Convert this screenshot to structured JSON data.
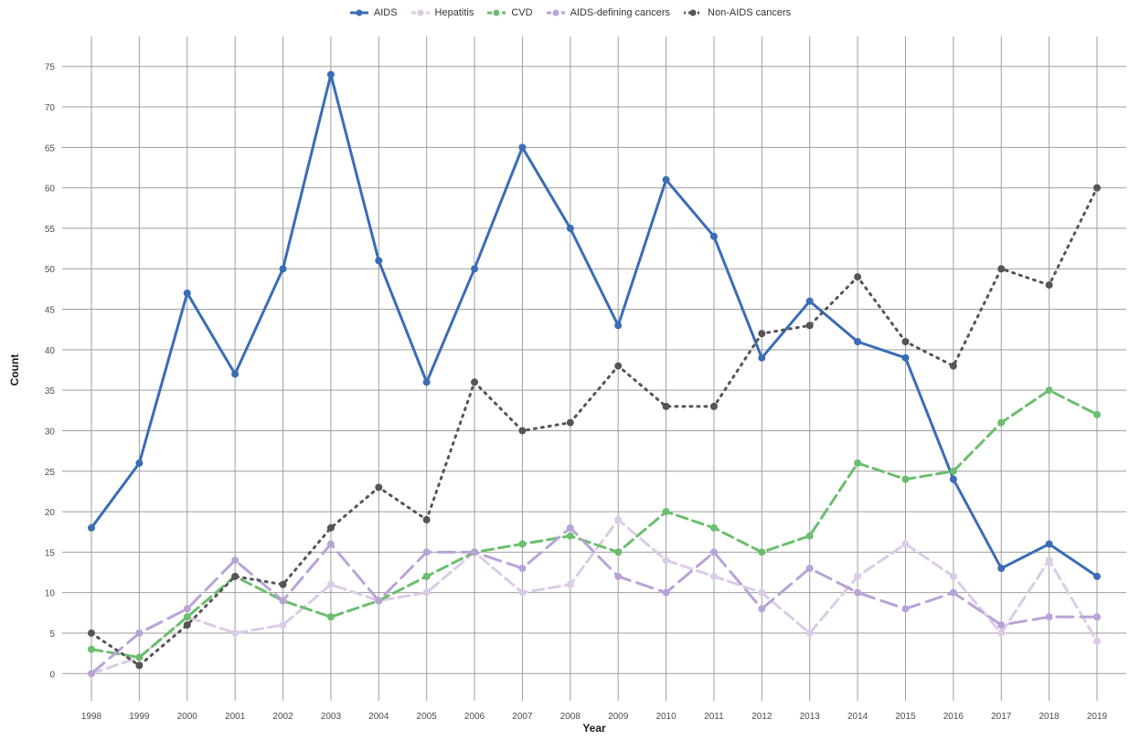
{
  "chart_data": {
    "type": "line",
    "title": "",
    "xlabel": "Year",
    "ylabel": "Count",
    "x": [
      1998,
      1999,
      2000,
      2001,
      2002,
      2003,
      2004,
      2005,
      2006,
      2007,
      2008,
      2009,
      2010,
      2011,
      2012,
      2013,
      2014,
      2015,
      2016,
      2017,
      2018,
      2019
    ],
    "x_tick_labels": [
      "1998",
      "1999",
      "2000",
      "2001",
      "2002",
      "2003",
      "2004",
      "2005",
      "2006",
      "2007",
      "2008",
      "2009",
      "2010",
      "2011",
      "2012",
      "2013",
      "2014",
      "2015",
      "2016",
      "2017",
      "2018",
      "2019"
    ],
    "ylim": [
      -2,
      77
    ],
    "y_ticks": [
      0,
      5,
      10,
      15,
      20,
      25,
      30,
      35,
      40,
      45,
      50,
      55,
      60,
      65,
      70,
      75
    ],
    "y_tick_labels": [
      "0",
      "5",
      "10",
      "15",
      "20",
      "25",
      "30",
      "35",
      "40",
      "45",
      "50",
      "55",
      "60",
      "65",
      "70",
      "75"
    ],
    "grid": true,
    "legend_position": "top",
    "series": [
      {
        "name": "AIDS",
        "color": "#3a6db5",
        "dash": "solid",
        "values": [
          18,
          26,
          47,
          37,
          50,
          74,
          51,
          36,
          50,
          65,
          55,
          43,
          61,
          54,
          39,
          46,
          41,
          39,
          24,
          13,
          16,
          12
        ]
      },
      {
        "name": "Hepatitis",
        "color": "#dccbe6",
        "dash": "dashed",
        "values": [
          0,
          2,
          7,
          5,
          6,
          11,
          9,
          10,
          15,
          10,
          11,
          19,
          14,
          12,
          10,
          5,
          12,
          16,
          12,
          5,
          14,
          4
        ]
      },
      {
        "name": "CVD",
        "color": "#6bbe6e",
        "dash": "dashed",
        "values": [
          3,
          2,
          7,
          12,
          9,
          7,
          9,
          12,
          15,
          16,
          17,
          15,
          20,
          18,
          15,
          17,
          26,
          24,
          25,
          31,
          35,
          32
        ]
      },
      {
        "name": "AIDS-defining cancers",
        "color": "#b9a3d6",
        "dash": "longdash",
        "values": [
          0,
          5,
          8,
          14,
          9,
          16,
          9,
          15,
          15,
          13,
          18,
          12,
          10,
          15,
          8,
          13,
          10,
          8,
          10,
          6,
          7,
          7
        ]
      },
      {
        "name": "Non-AIDS cancers",
        "color": "#555555",
        "dash": "dotted",
        "values": [
          5,
          1,
          6,
          12,
          11,
          18,
          23,
          19,
          36,
          30,
          31,
          38,
          33,
          33,
          42,
          43,
          49,
          41,
          38,
          50,
          48,
          60
        ]
      }
    ]
  }
}
